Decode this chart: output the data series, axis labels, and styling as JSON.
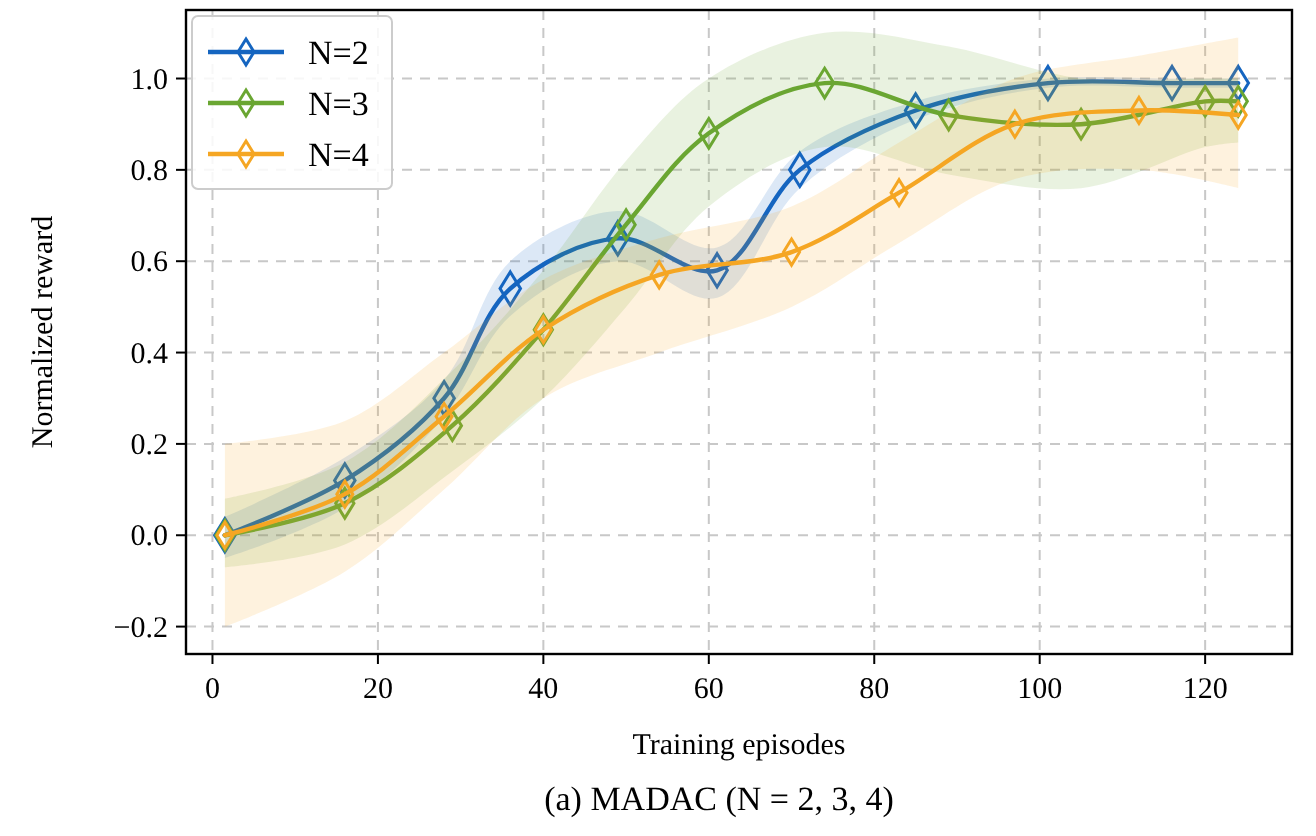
{
  "chart_data": {
    "type": "line",
    "xlabel": "Training episodes",
    "ylabel": "Normalized reward",
    "annotations": [
      "(a) MADAC (N = 2, 3, 4)"
    ],
    "xlim": [
      -3.2,
      130.5
    ],
    "ylim": [
      -0.26,
      1.15
    ],
    "xticks": [
      0,
      20,
      40,
      60,
      80,
      100,
      120
    ],
    "yticks": [
      {
        "value": -0.2,
        "label": "−0.2"
      },
      {
        "value": 0,
        "label": "0.0"
      },
      {
        "value": 0.2,
        "label": "0.2"
      },
      {
        "value": 0.4,
        "label": "0.4"
      },
      {
        "value": 0.6,
        "label": "0.6"
      },
      {
        "value": 0.8,
        "label": "0.8"
      },
      {
        "value": 1,
        "label": "1.0"
      }
    ],
    "grid": true,
    "legend": "top left",
    "marker": "diamond",
    "line_style": "solid",
    "series": [
      {
        "name": "N=2",
        "color": "#1565c0",
        "x": [
          1.5,
          16,
          28,
          36,
          49,
          61,
          71,
          85,
          101,
          116,
          124
        ],
        "values": [
          0,
          0.12,
          0.3,
          0.54,
          0.65,
          0.58,
          0.8,
          0.93,
          0.99,
          0.99,
          0.99
        ],
        "lower": [
          -0.05,
          0.06,
          0.26,
          0.48,
          0.6,
          0.52,
          0.76,
          0.91,
          0.98,
          0.98,
          0.98
        ],
        "upper": [
          0.04,
          0.17,
          0.34,
          0.6,
          0.71,
          0.63,
          0.84,
          0.95,
          1.0,
          1.0,
          1.0
        ]
      },
      {
        "name": "N=3",
        "color": "#6aa632",
        "x": [
          1.5,
          16,
          29,
          40,
          50,
          60,
          74,
          89,
          105,
          120,
          124
        ],
        "values": [
          0,
          0.07,
          0.24,
          0.45,
          0.68,
          0.88,
          0.99,
          0.92,
          0.9,
          0.95,
          0.95
        ],
        "lower": [
          -0.07,
          -0.02,
          0.14,
          0.3,
          0.5,
          0.72,
          0.85,
          0.79,
          0.76,
          0.85,
          0.86
        ],
        "upper": [
          0.08,
          0.16,
          0.36,
          0.58,
          0.82,
          1.0,
          1.1,
          1.07,
          1.0,
          1.0,
          1.0
        ]
      },
      {
        "name": "N=4",
        "color": "#f5a623",
        "x": [
          1.5,
          16,
          28,
          40,
          54,
          70,
          83,
          97,
          112,
          124
        ],
        "values": [
          0,
          0.09,
          0.26,
          0.45,
          0.57,
          0.62,
          0.75,
          0.9,
          0.93,
          0.92
        ],
        "lower": [
          -0.2,
          -0.08,
          0.1,
          0.3,
          0.4,
          0.5,
          0.64,
          0.78,
          0.8,
          0.76
        ],
        "upper": [
          0.2,
          0.25,
          0.4,
          0.56,
          0.65,
          0.72,
          0.86,
          1.0,
          1.05,
          1.09
        ]
      }
    ]
  }
}
